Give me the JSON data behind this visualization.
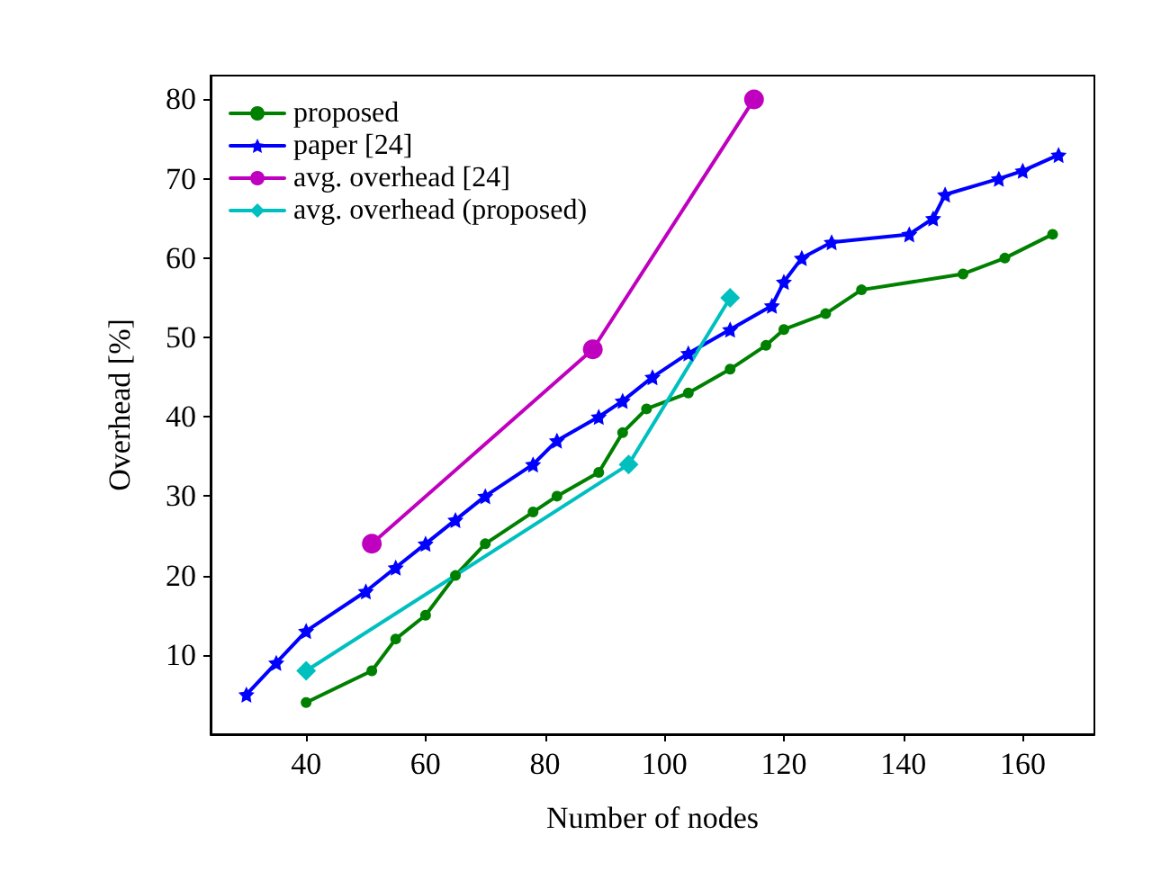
{
  "chart_data": {
    "type": "line",
    "xlabel": "Number of nodes",
    "ylabel": "Overhead [%]",
    "xlim": [
      24,
      172
    ],
    "xticks": [
      40,
      60,
      80,
      100,
      120,
      140,
      160
    ],
    "ylim": [
      0,
      83
    ],
    "yticks": [
      10,
      20,
      30,
      40,
      50,
      60,
      70,
      80
    ],
    "grid": false,
    "legend": "top left",
    "line_style": "solid",
    "series": [
      {
        "name": "proposed",
        "color": "#008000",
        "marker": "circle",
        "x": [
          40,
          51,
          55,
          60,
          65,
          70,
          78,
          82,
          89,
          93,
          97,
          104,
          111,
          117,
          120,
          127,
          133,
          150,
          157,
          165
        ],
        "values": [
          4,
          8,
          12,
          15,
          20,
          24,
          28,
          30,
          33,
          38,
          41,
          43,
          46,
          49,
          51,
          53,
          56,
          58,
          60,
          63
        ]
      },
      {
        "name": "paper [24]",
        "color": "#0000ff",
        "marker": "star",
        "x": [
          30,
          35,
          40,
          50,
          55,
          60,
          65,
          70,
          78,
          82,
          89,
          93,
          98,
          104,
          111,
          118,
          120,
          123,
          128,
          141,
          145,
          147,
          156,
          160,
          166
        ],
        "values": [
          5,
          9,
          13,
          18,
          21,
          24,
          27,
          30,
          34,
          37,
          40,
          42,
          45,
          48,
          51,
          54,
          57,
          60,
          62,
          63,
          65,
          68,
          70,
          71,
          73
        ]
      },
      {
        "name": "avg. overhead [24]",
        "color": "#bf00bf",
        "marker": "circle",
        "x": [
          51,
          88,
          115
        ],
        "values": [
          24,
          48.5,
          80
        ]
      },
      {
        "name": "avg. overhead (proposed)",
        "color": "#00bfbf",
        "marker": "diamond",
        "x": [
          40,
          94,
          111
        ],
        "values": [
          8,
          34,
          55
        ]
      }
    ]
  }
}
